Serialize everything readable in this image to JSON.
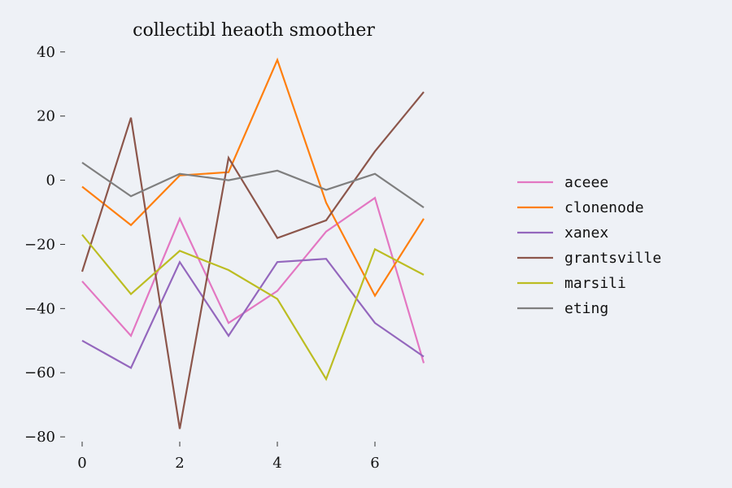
{
  "chart_data": {
    "type": "line",
    "title": "collectibl heaoth smoother",
    "xlabel": "",
    "ylabel": "",
    "x": [
      0,
      1,
      2,
      3,
      4,
      5,
      6,
      7
    ],
    "xlim": [
      -0.35,
      7.35
    ],
    "ylim": [
      -82,
      43
    ],
    "xticks": [
      0,
      2,
      4,
      6
    ],
    "yticks": [
      40,
      20,
      0,
      -20,
      -40,
      -60,
      -80
    ],
    "xtick_labels": [
      "0",
      "2",
      "4",
      "6"
    ],
    "ytick_labels": [
      "40",
      "20",
      "0",
      "−20",
      "−40",
      "−60",
      "−80"
    ],
    "grid": false,
    "legend_position": "right",
    "series": [
      {
        "name": "aceee",
        "color": "#e377c2",
        "values": [
          -31.5,
          -48.5,
          -12,
          -44.5,
          -34.5,
          -16,
          -5.5,
          -57
        ]
      },
      {
        "name": "clonenode",
        "color": "#ff7f0e",
        "values": [
          -2,
          -14,
          1.5,
          2.5,
          37.5,
          -7,
          -36,
          -12
        ]
      },
      {
        "name": "xanex",
        "color": "#9467bd",
        "values": [
          -50,
          -58.5,
          -25.5,
          -48.5,
          -25.5,
          -24.5,
          -44.5,
          -55
        ]
      },
      {
        "name": "grantsville",
        "color": "#8c564b",
        "values": [
          -28.5,
          19.5,
          -77.5,
          7,
          -18,
          -12.5,
          9,
          27.5
        ]
      },
      {
        "name": "marsili",
        "color": "#bcbd22",
        "values": [
          -17,
          -35.5,
          -22,
          -28,
          -37,
          -62,
          -21.5,
          -29.5
        ]
      },
      {
        "name": "eting",
        "color": "#7f7f7f",
        "values": [
          5.5,
          -5,
          2,
          0,
          3,
          -3,
          2,
          -8.5
        ]
      }
    ]
  }
}
